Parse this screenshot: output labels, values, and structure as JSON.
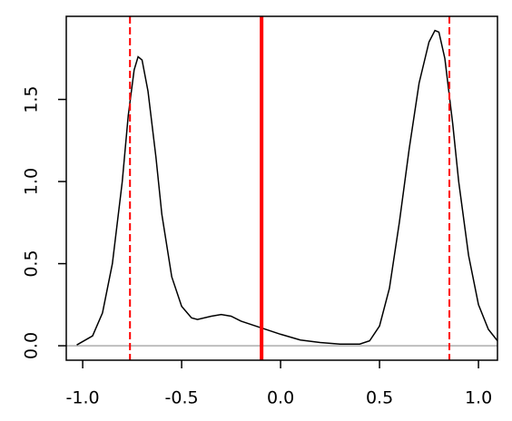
{
  "chart_data": {
    "type": "line",
    "x": [
      -1.03,
      -0.95,
      -0.9,
      -0.85,
      -0.8,
      -0.77,
      -0.74,
      -0.72,
      -0.7,
      -0.67,
      -0.63,
      -0.6,
      -0.55,
      -0.5,
      -0.45,
      -0.42,
      -0.35,
      -0.3,
      -0.25,
      -0.2,
      -0.1,
      0.0,
      0.1,
      0.2,
      0.3,
      0.4,
      0.45,
      0.5,
      0.55,
      0.6,
      0.65,
      0.7,
      0.75,
      0.78,
      0.8,
      0.83,
      0.87,
      0.9,
      0.95,
      1.0,
      1.05,
      1.096
    ],
    "series": [
      {
        "color": "#000000",
        "values": [
          0.005,
          0.06,
          0.2,
          0.5,
          1.0,
          1.4,
          1.68,
          1.76,
          1.74,
          1.55,
          1.15,
          0.8,
          0.42,
          0.24,
          0.17,
          0.16,
          0.18,
          0.19,
          0.18,
          0.15,
          0.11,
          0.07,
          0.035,
          0.02,
          0.01,
          0.01,
          0.03,
          0.12,
          0.35,
          0.75,
          1.2,
          1.6,
          1.85,
          1.92,
          1.91,
          1.75,
          1.35,
          1.0,
          0.55,
          0.25,
          0.1,
          0.03
        ]
      }
    ],
    "xlim": [
      -1.083,
      1.096
    ],
    "ylim": [
      -0.088,
      2.006
    ],
    "xticks": [
      {
        "value": -1.0,
        "label": "-1.0"
      },
      -0.5,
      {
        "value": 0.0,
        "label": "0.0"
      },
      0.5,
      {
        "value": 1.0,
        "label": "1.0"
      }
    ],
    "yticks": [
      {
        "value": 0.0,
        "label": "0.0"
      },
      0.5,
      {
        "value": 1.0,
        "label": "1.0"
      },
      1.5
    ],
    "vlines": [
      {
        "value": -0.761,
        "color": "#ff0000",
        "style": "dashed"
      },
      {
        "value": -0.096,
        "color": "#ff0000",
        "style": "solid"
      },
      {
        "value": 0.853,
        "color": "#ff0000",
        "style": "dashed"
      }
    ],
    "hlines": [
      {
        "value": 0,
        "color": "#bebebe",
        "style": "solid"
      }
    ]
  }
}
